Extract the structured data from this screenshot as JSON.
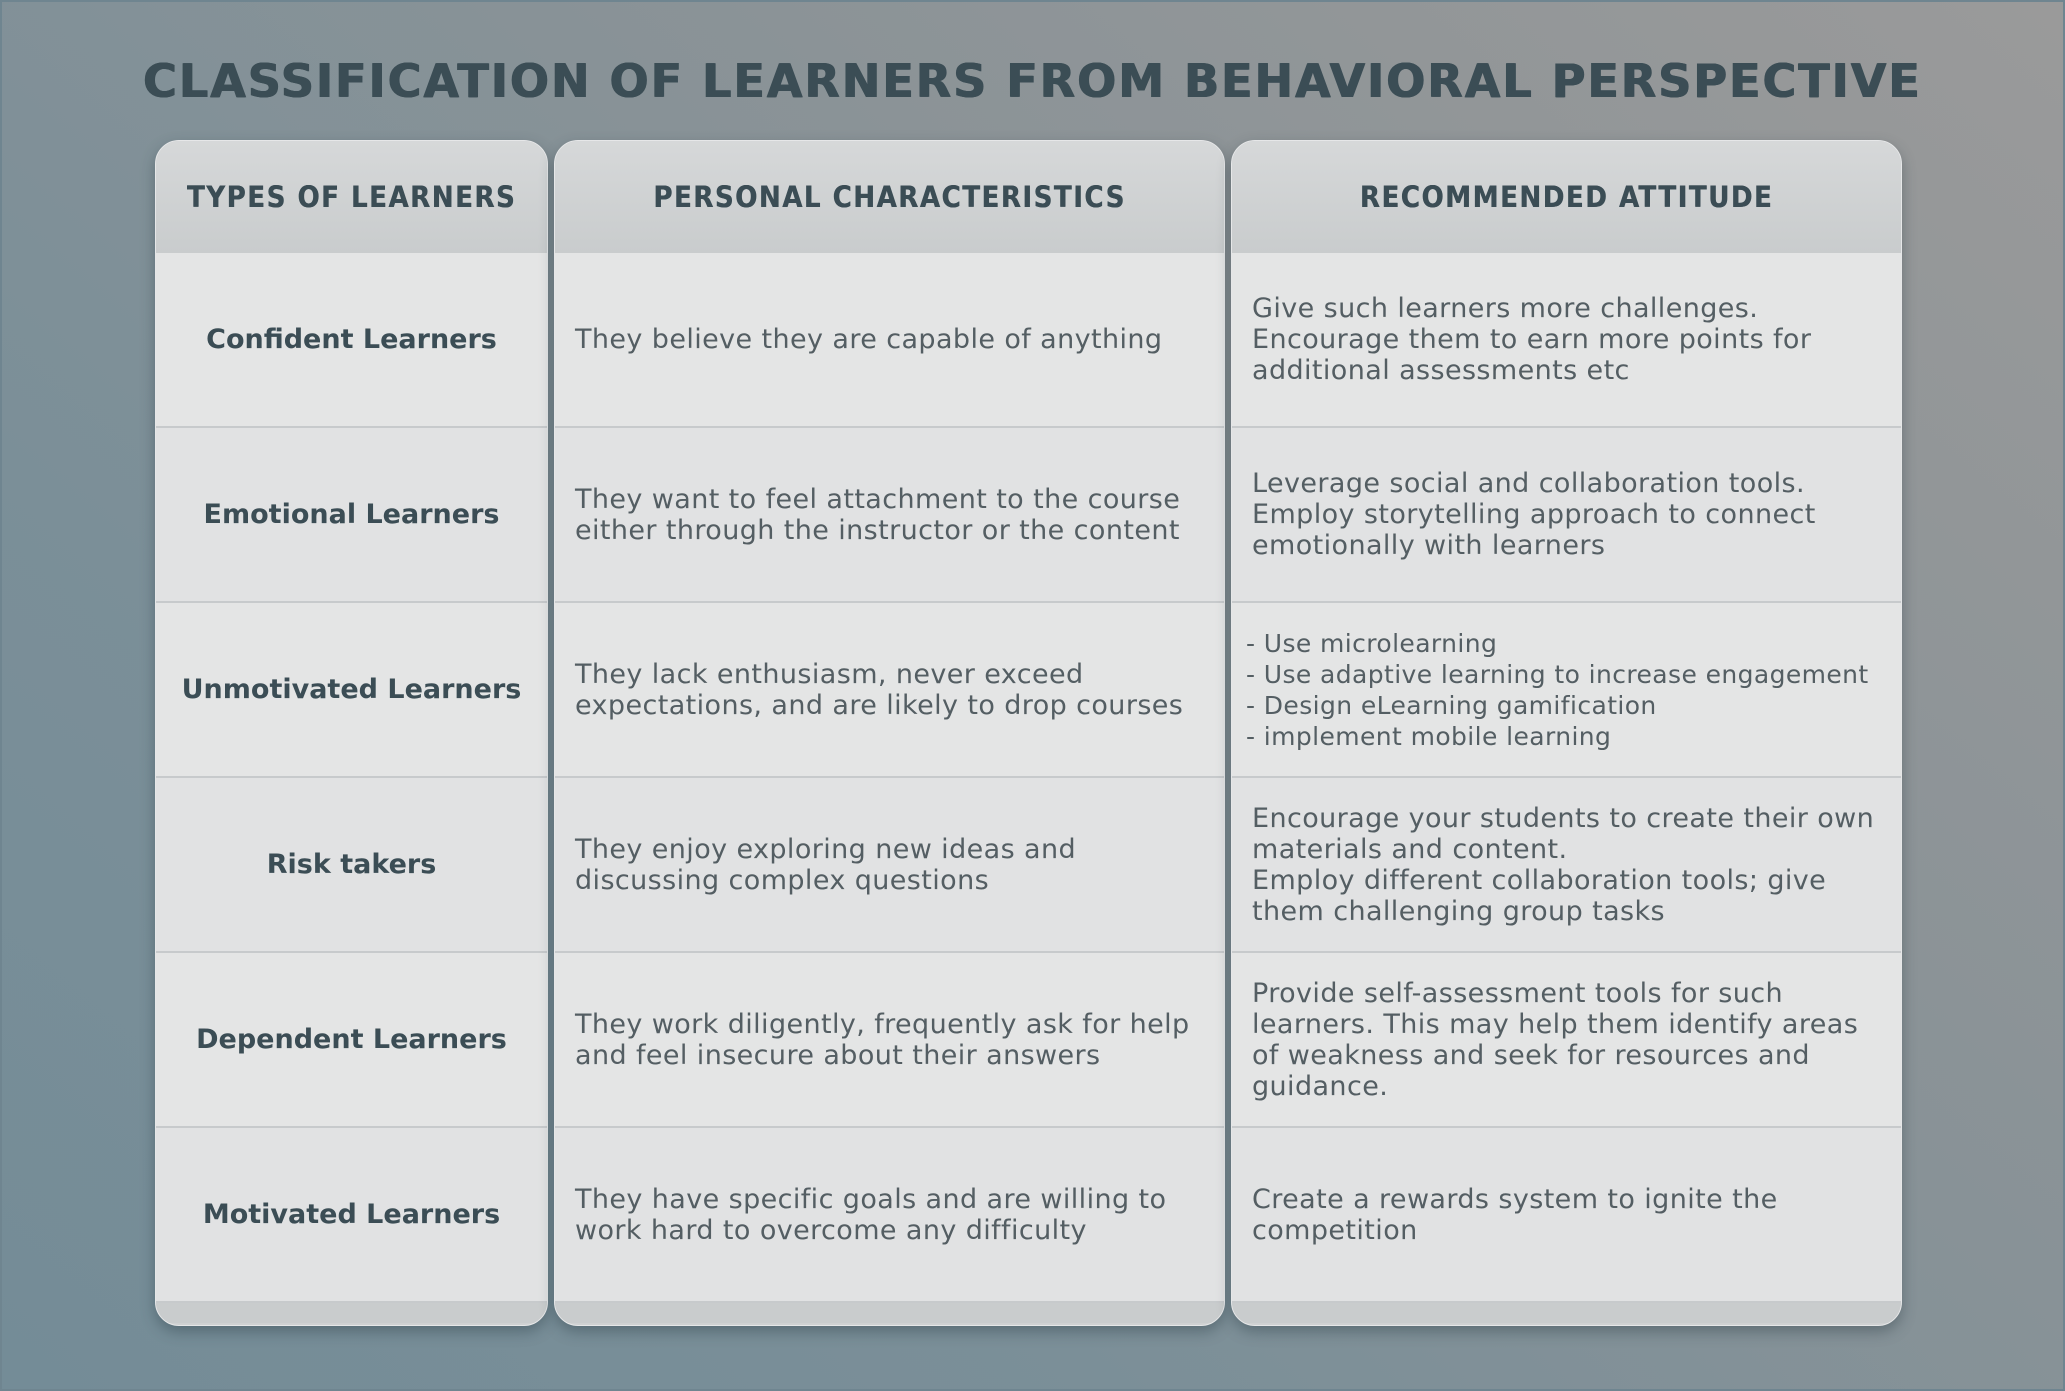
{
  "title": "Classification of  Learners from Behavioral Perspective",
  "headers": {
    "types": "Types of Learners",
    "characteristics": "Personal Characteristics",
    "attitude": "Recommended Attitude"
  },
  "rows": [
    {
      "type": "Confident Learners",
      "characteristics": "They believe they are capable of anything",
      "attitude": "Give such learners more challenges.\nEncourage them to earn more points for additional assessments etc"
    },
    {
      "type": "Emotional Learners",
      "characteristics": "They want to feel attachment to the course either through the instructor or the content",
      "attitude": "Leverage social and collaboration tools.\nEmploy storytelling approach to connect emotionally with learners"
    },
    {
      "type": "Unmotivated Learners",
      "characteristics": "They lack enthusiasm, never exceed expectations, and are likely to drop courses",
      "attitude": "- Use microlearning\n- Use adaptive learning to increase engagement\n- Design eLearning gamification\n- implement mobile learning"
    },
    {
      "type": "Risk takers",
      "characteristics": "They enjoy exploring new ideas and discussing complex questions",
      "attitude": "Encourage your students to create their own materials and content.\nEmploy different collaboration tools; give them challenging group tasks"
    },
    {
      "type": "Dependent Learners",
      "characteristics": "They work diligently, frequently ask for help and feel insecure about their answers",
      "attitude": "Provide self-assessment tools for such learners. This may help them identify areas of weakness and seek for resources and guidance."
    },
    {
      "type": "Motivated Learners",
      "characteristics": "They have specific goals and are willing to work hard to overcome any difficulty",
      "attitude": "Create a rewards system to ignite the competition"
    }
  ]
}
